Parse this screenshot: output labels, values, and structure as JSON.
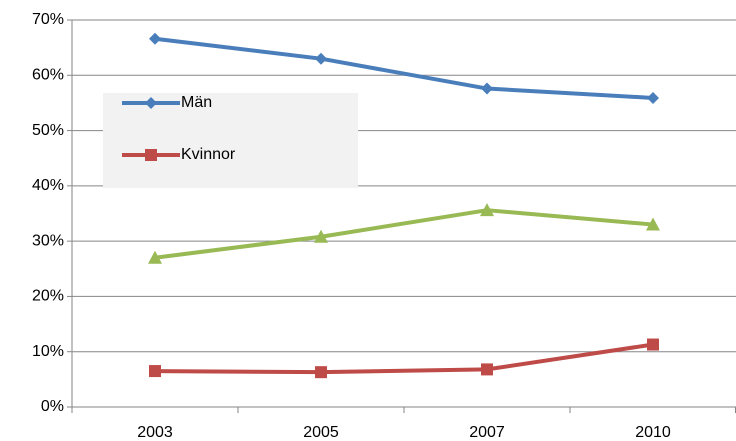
{
  "chart_data": {
    "type": "line",
    "categories": [
      "2003",
      "2005",
      "2007",
      "2010"
    ],
    "series": [
      {
        "name": "Män",
        "color": "#4a7ebb",
        "marker": "diamond",
        "values": [
          66.6,
          63,
          57.6,
          55.9
        ]
      },
      {
        "name": "Kvinnor",
        "color": "#be4b48",
        "marker": "square",
        "values": [
          6.5,
          6.3,
          6.8,
          11.3
        ]
      },
      {
        "color": "#98b954",
        "marker": "triangle",
        "values": [
          27,
          30.8,
          35.6,
          33
        ]
      }
    ],
    "ylim": [
      0,
      70
    ],
    "yticks": [
      {
        "value": 0,
        "label": "0%"
      },
      {
        "value": 10,
        "label": "10%"
      },
      {
        "value": 20,
        "label": "20%"
      },
      {
        "value": 30,
        "label": "30%"
      },
      {
        "value": 40,
        "label": "40%"
      },
      {
        "value": 50,
        "label": "50%"
      },
      {
        "value": 60,
        "label": "60%"
      },
      {
        "value": 70,
        "label": "70%"
      }
    ],
    "grid": true,
    "legend": "upper-left"
  }
}
